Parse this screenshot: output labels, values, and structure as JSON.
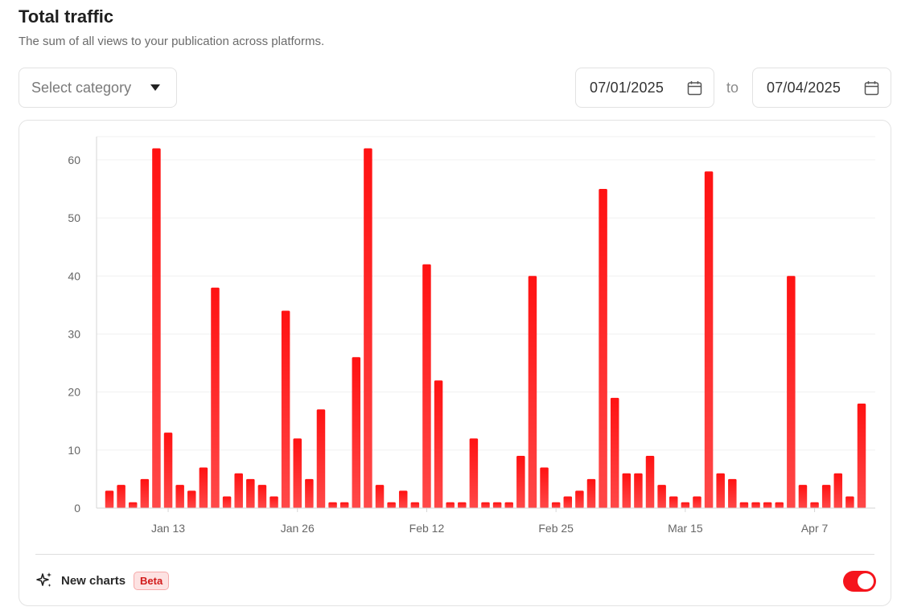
{
  "header": {
    "title": "Total traffic",
    "subtitle": "The sum of all views to your publication across platforms."
  },
  "filters": {
    "category_placeholder": "Select category",
    "date_from": "07/01/2025",
    "to_label": "to",
    "date_to": "07/04/2025"
  },
  "footer": {
    "new_charts_label": "New charts",
    "beta_label": "Beta",
    "toggle_on": true
  },
  "colors": {
    "bar": "#ff1a1a",
    "bar_fade": "#ff4d4d",
    "toggle": "#f5141c"
  },
  "chart_data": {
    "type": "bar",
    "title": "",
    "xlabel": "",
    "ylabel": "",
    "ylim": [
      0,
      64
    ],
    "yticks": [
      0,
      10,
      20,
      30,
      40,
      50,
      60
    ],
    "grid": true,
    "x_tick_labels": [
      {
        "label": "Jan 13",
        "index": 5
      },
      {
        "label": "Jan 26",
        "index": 16
      },
      {
        "label": "Feb 12",
        "index": 27
      },
      {
        "label": "Feb 25",
        "index": 38
      },
      {
        "label": "Mar 15",
        "index": 49
      },
      {
        "label": "Apr 7",
        "index": 60
      }
    ],
    "values": [
      3,
      4,
      1,
      5,
      62,
      13,
      4,
      3,
      7,
      38,
      2,
      6,
      5,
      4,
      2,
      34,
      12,
      5,
      17,
      1,
      1,
      26,
      62,
      4,
      1,
      3,
      1,
      42,
      22,
      1,
      1,
      12,
      1,
      1,
      1,
      9,
      40,
      7,
      1,
      2,
      3,
      5,
      55,
      19,
      6,
      6,
      9,
      4,
      2,
      1,
      2,
      58,
      6,
      5,
      1,
      1,
      1,
      1,
      40,
      4,
      1,
      4,
      6,
      2,
      18
    ]
  }
}
